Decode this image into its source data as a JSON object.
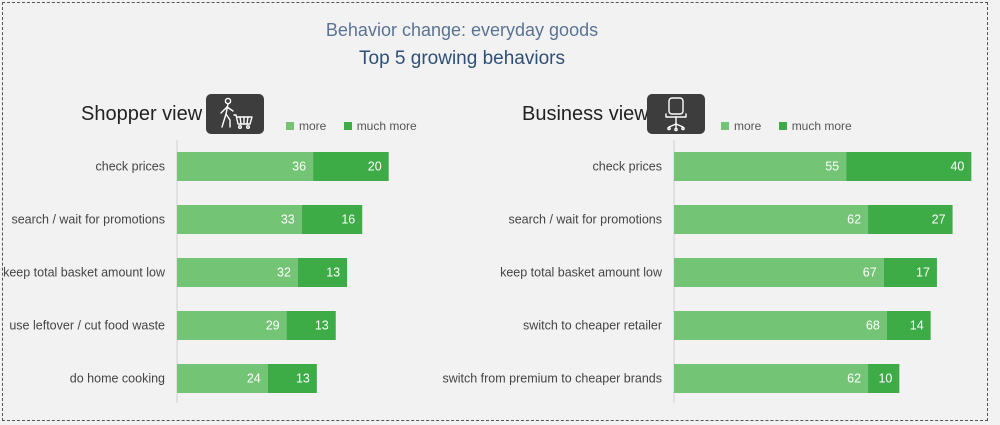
{
  "header": {
    "title": "Behavior change: everyday goods",
    "subtitle": "Top 5 growing behaviors"
  },
  "colors": {
    "more": "#74c476",
    "much_more": "#3dab46",
    "axis": "#d0d0d0"
  },
  "shopper": {
    "title": "Shopper view",
    "icon": "shopper-cart-icon",
    "legend": {
      "more": "more",
      "much_more": "much more"
    }
  },
  "business": {
    "title": "Business view",
    "icon": "office-chair-icon",
    "legend": {
      "more": "more",
      "much_more": "much more"
    }
  },
  "chart_data": [
    {
      "type": "bar",
      "orientation": "horizontal",
      "stacked": true,
      "title": "Shopper view",
      "categories": [
        "check prices",
        "search / wait for promotions",
        "keep total basket amount low",
        "use leftover / cut food waste",
        "do home cooking"
      ],
      "series": [
        {
          "name": "more",
          "values": [
            36,
            33,
            32,
            29,
            24
          ]
        },
        {
          "name": "much more",
          "values": [
            20,
            16,
            13,
            13,
            13
          ]
        }
      ],
      "xlim": [
        0,
        60
      ],
      "legend": "top-right"
    },
    {
      "type": "bar",
      "orientation": "horizontal",
      "stacked": true,
      "title": "Business view",
      "categories": [
        "check prices",
        "search / wait for promotions",
        "keep total basket amount low",
        "switch to cheaper retailer",
        "switch from premium to cheaper brands"
      ],
      "series": [
        {
          "name": "more",
          "values": [
            55,
            62,
            67,
            68,
            62
          ]
        },
        {
          "name": "much more",
          "values": [
            40,
            27,
            17,
            14,
            10
          ]
        }
      ],
      "xlim": [
        0,
        100
      ],
      "legend": "top-right"
    }
  ]
}
